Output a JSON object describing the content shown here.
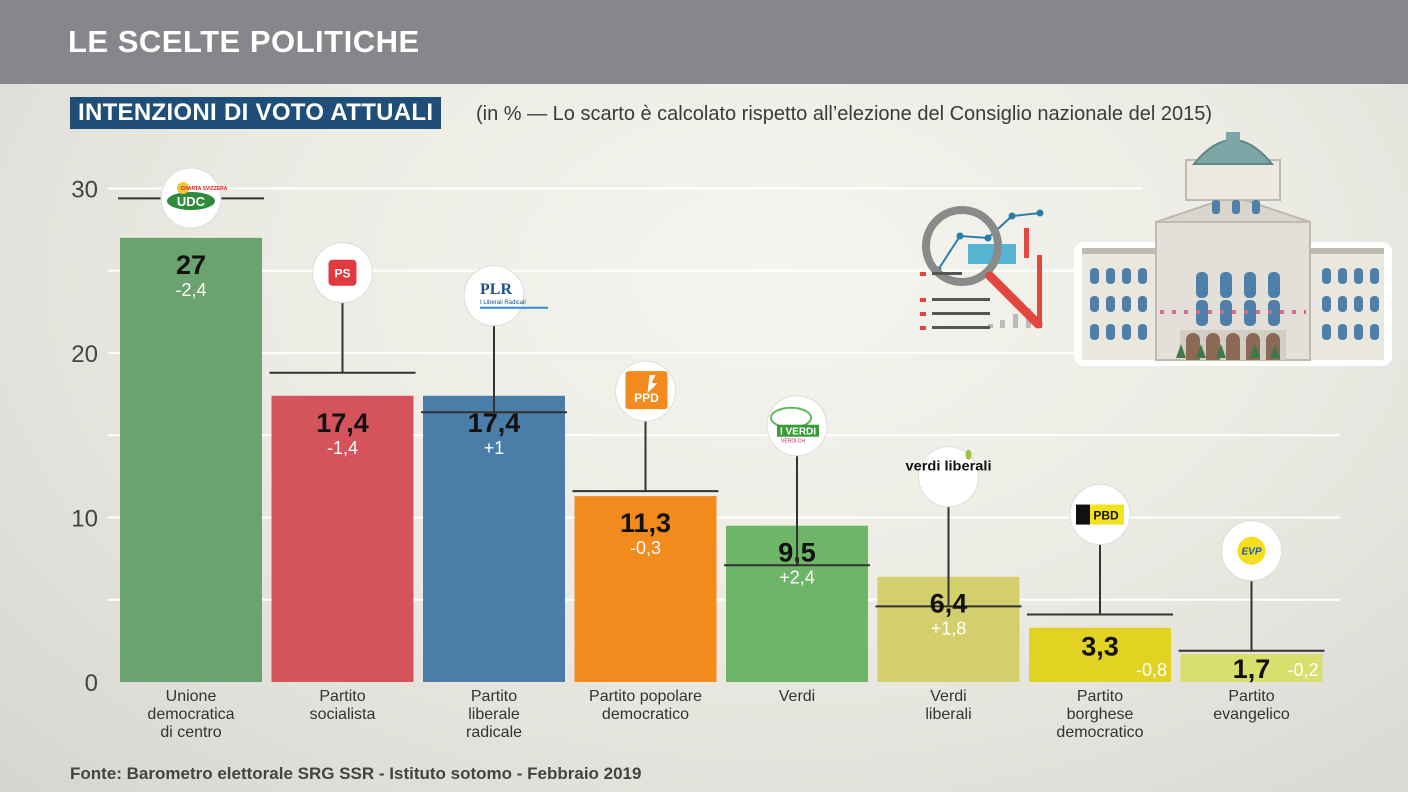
{
  "header": {
    "title": "LE SCELTE POLITICHE",
    "subtitle": "INTENZIONI DI VOTO ATTUALI",
    "note": "(in % — Lo scarto è calcolato rispetto all’elezione del Consiglio nazionale del 2015)"
  },
  "footer": {
    "source": "Fonte: Barometro elettorale SRG SSR - Istituto sotomo - Febbraio 2019"
  },
  "decorations": {
    "analysis_icon": "magnifier-chart-icon",
    "building_icon": "federal-palace-icon"
  },
  "chart_data": {
    "type": "bar",
    "ylim": [
      0,
      30
    ],
    "yticks": [
      "0",
      "10",
      "20",
      "30"
    ],
    "grid": true,
    "categories": [
      [
        "Unione",
        "democratica",
        "di centro"
      ],
      [
        "Partito",
        "socialista"
      ],
      [
        "Partito",
        "liberale",
        "radicale"
      ],
      [
        "Partito popolare",
        "democratico"
      ],
      [
        "Verdi"
      ],
      [
        "Verdi",
        "liberali"
      ],
      [
        "Partito",
        "borghese",
        "democratico"
      ],
      [
        "Partito",
        "evangelico"
      ]
    ],
    "values": [
      27,
      17.4,
      17.4,
      11.3,
      9.5,
      6.4,
      3.3,
      1.7
    ],
    "value_labels": [
      "27",
      "17,4",
      "17,4",
      "11,3",
      "9,5",
      "6,4",
      "3,3",
      "1,7"
    ],
    "previous_values": [
      29.4,
      18.8,
      16.4,
      11.6,
      7.1,
      4.6,
      4.1,
      1.9
    ],
    "changes": [
      "-2,4",
      "-1,4",
      "+1",
      "-0,3",
      "+2,4",
      "+1,8",
      "-0,8",
      "-0,2"
    ],
    "colors": [
      "#6aa36f",
      "#d5535a",
      "#4a7ea8",
      "#f28a1e",
      "#6db567",
      "#d2cf6c",
      "#e2d222",
      "#d8df6d"
    ],
    "logos": [
      {
        "name": "udc-logo",
        "text": "UDC",
        "tagline": "CHARTA SVIZZERA"
      },
      {
        "name": "ps-logo",
        "text": "PS"
      },
      {
        "name": "plr-logo",
        "text": "PLR",
        "tagline": "I Liberali Radicali"
      },
      {
        "name": "ppd-logo",
        "text": "PPD"
      },
      {
        "name": "verdi-logo",
        "text": "I VERDI",
        "tagline": "VERDI.CH"
      },
      {
        "name": "verdi-liberali-logo",
        "text": "verdi liberali"
      },
      {
        "name": "pbd-logo",
        "text": "PBD"
      },
      {
        "name": "evp-logo",
        "text": "EVP"
      }
    ]
  }
}
